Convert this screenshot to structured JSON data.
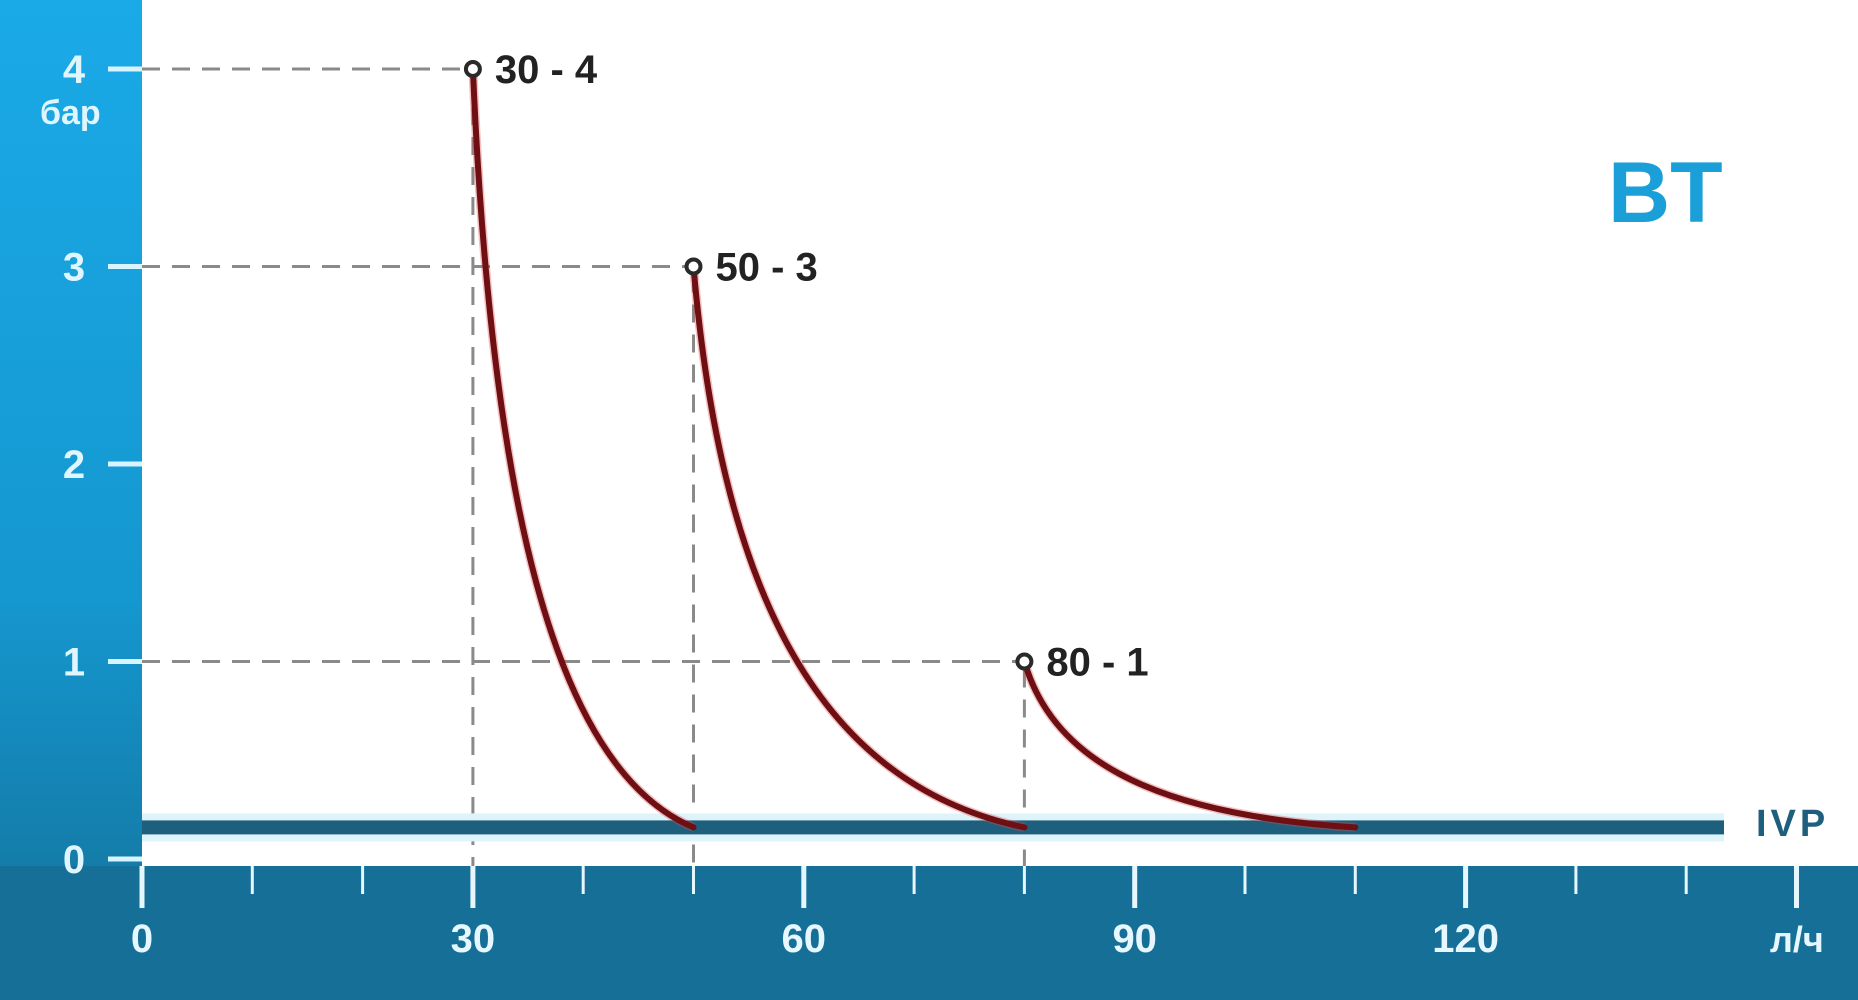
{
  "chart_data": {
    "type": "line",
    "title": "BT",
    "xlabel": "л/ч",
    "ylabel": "бар",
    "xlim": [
      0,
      150
    ],
    "ylim": [
      0,
      4
    ],
    "x_ticks": [
      "0",
      "30",
      "60",
      "90",
      "120"
    ],
    "x_minor_step": 10,
    "y_ticks": [
      "0",
      "1",
      "2",
      "3",
      "4"
    ],
    "grid": false,
    "reference_line": {
      "label": "IVP",
      "y": 0.16
    },
    "series": [
      {
        "label": "30 - 4",
        "points": [
          [
            30,
            4
          ],
          [
            50,
            0.16
          ]
        ]
      },
      {
        "label": "50 - 3",
        "points": [
          [
            50,
            3
          ],
          [
            80,
            0.16
          ]
        ]
      },
      {
        "label": "80 - 1",
        "points": [
          [
            80,
            1
          ],
          [
            110,
            0.16
          ]
        ]
      }
    ],
    "colors": {
      "axis_band_top": "#1aaae8",
      "axis_band_bottom": "#136f96",
      "curve": "#6e0f14",
      "ivp_line": "#1d5f7c",
      "title": "#1a9fd8"
    }
  }
}
